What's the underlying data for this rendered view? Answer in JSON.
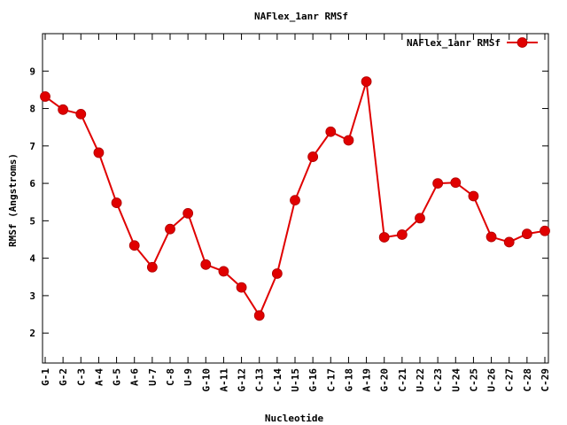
{
  "chart_data": {
    "type": "line",
    "title": "NAFlex_1anr RMSf",
    "xlabel": "Nucleotide",
    "ylabel": "RMSf (Angstroms)",
    "categories": [
      "G-1",
      "G-2",
      "C-3",
      "A-4",
      "G-5",
      "A-6",
      "U-7",
      "C-8",
      "U-9",
      "G-10",
      "A-11",
      "G-12",
      "C-13",
      "C-14",
      "U-15",
      "G-16",
      "C-17",
      "G-18",
      "A-19",
      "G-20",
      "C-21",
      "U-22",
      "C-23",
      "U-24",
      "C-25",
      "U-26",
      "C-27",
      "C-28",
      "C-29"
    ],
    "series": [
      {
        "name": "NAFlex_1anr RMSf",
        "color": "#e00000",
        "values": [
          8.32,
          7.97,
          7.85,
          6.82,
          5.48,
          4.34,
          3.76,
          4.78,
          5.2,
          3.83,
          3.65,
          3.22,
          2.47,
          3.59,
          5.55,
          6.71,
          7.38,
          7.15,
          8.72,
          4.56,
          4.63,
          5.07,
          6.0,
          6.02,
          5.66,
          4.57,
          4.43,
          4.65,
          4.73
        ]
      }
    ],
    "yticks": [
      2,
      3,
      4,
      5,
      6,
      7,
      8,
      9
    ],
    "ylim": [
      1.2,
      10
    ],
    "grid": false,
    "legend": "top-right"
  }
}
